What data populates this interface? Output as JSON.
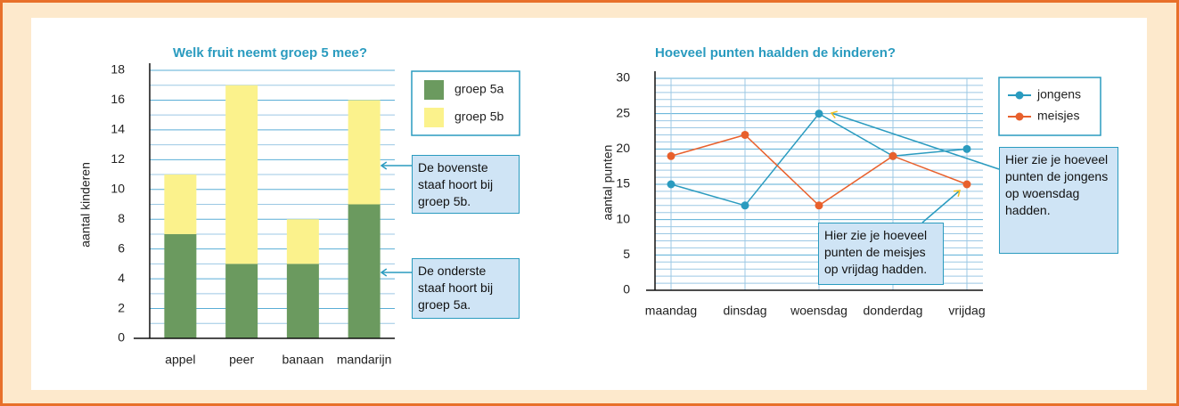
{
  "chart_data": [
    {
      "type": "stacked_bar",
      "title": "Welk fruit neemt groep 5 mee?",
      "y_label": "aantal kinderen",
      "categories": [
        "appel",
        "peer",
        "banaan",
        "mandarijn"
      ],
      "series": [
        {
          "name": "groep 5a",
          "color": "#6b9a5f",
          "values": [
            7,
            5,
            5,
            9
          ]
        },
        {
          "name": "groep 5b",
          "color": "#fbf28c",
          "values": [
            4,
            12,
            3,
            7
          ]
        }
      ],
      "ylim": [
        0,
        18
      ],
      "yticks": [
        0,
        2,
        4,
        6,
        8,
        10,
        12,
        14,
        16,
        18
      ],
      "minor_yticks": [
        1,
        3,
        5,
        7,
        9,
        11,
        13,
        15,
        17
      ],
      "grid": true,
      "annotations": [
        "De bovenste staaf hoort bij groep 5b.",
        "De onderste staaf hoort bij groep 5a."
      ]
    },
    {
      "type": "line",
      "title": "Hoeveel punten haalden de kinderen?",
      "y_label": "aantal punten",
      "categories": [
        "maandag",
        "dinsdag",
        "woensdag",
        "donderdag",
        "vrijdag"
      ],
      "series": [
        {
          "name": "jongens",
          "color": "#2a9bbf",
          "values": [
            15,
            12,
            25,
            19,
            20
          ]
        },
        {
          "name": "meisjes",
          "color": "#e8602c",
          "values": [
            19,
            22,
            12,
            19,
            15
          ]
        }
      ],
      "ylim": [
        0,
        30
      ],
      "yticks": [
        0,
        5,
        10,
        15,
        20,
        25,
        30
      ],
      "minor_yticks": [
        1,
        2,
        3,
        4,
        6,
        7,
        8,
        9,
        11,
        12,
        13,
        14,
        16,
        17,
        18,
        19,
        21,
        22,
        23,
        24,
        26,
        27,
        28,
        29
      ],
      "grid": true,
      "annotations": [
        "Hier zie je hoeveel punten de jongens op woensdag hadden.",
        "Hier zie je hoeveel punten de meisjes op vrijdag hadden."
      ]
    }
  ]
}
